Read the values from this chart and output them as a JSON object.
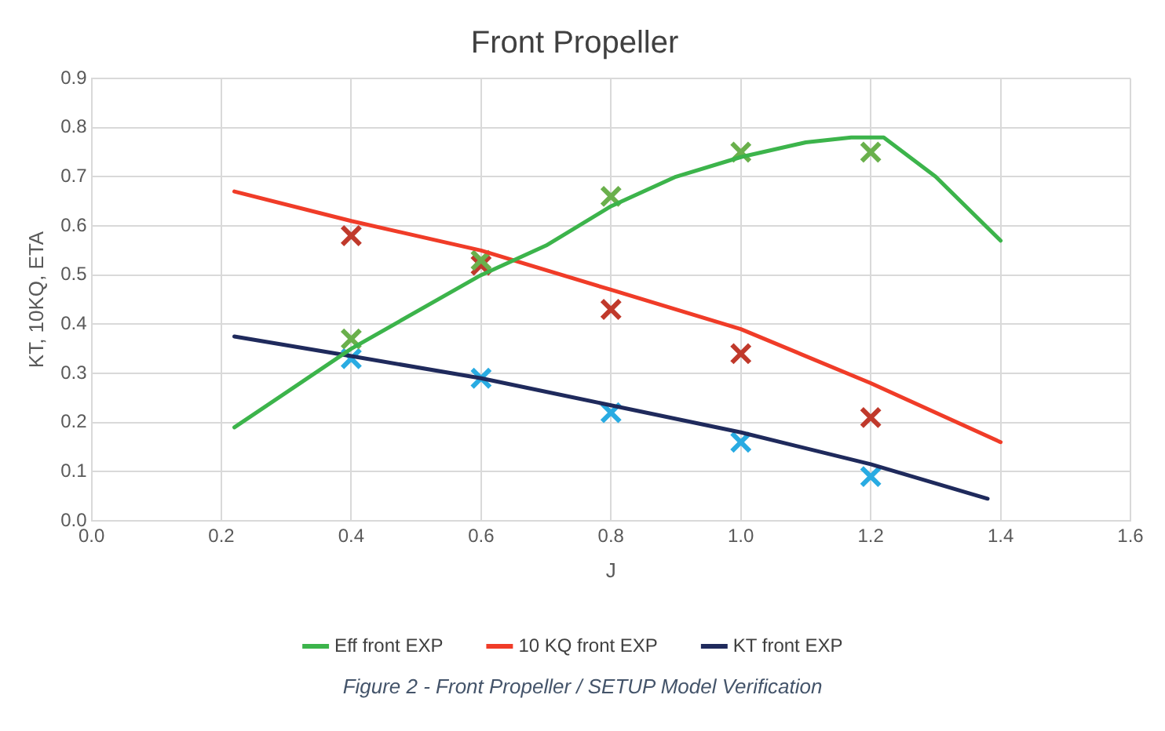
{
  "chart_data": {
    "type": "line",
    "title": "Front Propeller",
    "xlabel": "J",
    "ylabel": "KT, 10KQ, ETA",
    "xlim": [
      0,
      1.6
    ],
    "xticks": [
      {
        "value": 0,
        "label": "0.0"
      },
      0.2,
      0.4,
      0.6,
      0.8,
      {
        "value": 1,
        "label": "1.0"
      },
      1.2,
      1.4,
      1.6
    ],
    "ylim": [
      0,
      0.9
    ],
    "yticks": [
      {
        "value": 0,
        "label": "0.0"
      },
      0.1,
      0.2,
      0.3,
      0.4,
      0.5,
      0.6,
      0.7,
      0.8,
      0.9
    ],
    "grid": true,
    "legend": "bottom",
    "line_style": "solid",
    "series": [
      {
        "name": "Eff front EXP",
        "marker": "none",
        "color": "#3cb44b",
        "x": [
          0.22,
          0.4,
          0.6,
          0.7,
          0.8,
          0.9,
          1.0,
          1.1,
          1.17,
          1.22,
          1.3,
          1.4
        ],
        "values": [
          0.19,
          0.35,
          0.5,
          0.56,
          0.64,
          0.7,
          0.74,
          0.77,
          0.78,
          0.78,
          0.7,
          0.57
        ]
      },
      {
        "name": "10 KQ front EXP",
        "marker": "none",
        "color": "#f03c28",
        "x": [
          0.22,
          0.4,
          0.6,
          0.8,
          1.0,
          1.2,
          1.4
        ],
        "values": [
          0.67,
          0.61,
          0.55,
          0.47,
          0.39,
          0.28,
          0.16
        ]
      },
      {
        "name": "KT front EXP",
        "marker": "none",
        "color": "#1f2a5c",
        "x": [
          0.22,
          0.4,
          0.6,
          0.8,
          1.0,
          1.2,
          1.38
        ],
        "values": [
          0.375,
          0.335,
          0.29,
          0.235,
          0.18,
          0.115,
          0.045
        ]
      },
      {
        "type": "scatter",
        "marker": "cross",
        "color": "#6ab04c",
        "x": [
          0.4,
          0.6,
          0.8,
          1.0,
          1.2
        ],
        "values": [
          0.37,
          0.53,
          0.66,
          0.75,
          0.75
        ]
      },
      {
        "type": "scatter",
        "marker": "cross",
        "color": "#c0392b",
        "x": [
          0.4,
          0.6,
          0.8,
          1.0,
          1.2
        ],
        "values": [
          0.58,
          0.52,
          0.43,
          0.34,
          0.21
        ]
      },
      {
        "type": "scatter",
        "marker": "cross",
        "color": "#29abe2",
        "x": [
          0.4,
          0.6,
          0.8,
          1.0,
          1.2
        ],
        "values": [
          0.33,
          0.29,
          0.22,
          0.16,
          0.09
        ]
      }
    ],
    "annotations": [
      "Figure 2 - Front Propeller / SETUP Model Verification"
    ]
  }
}
